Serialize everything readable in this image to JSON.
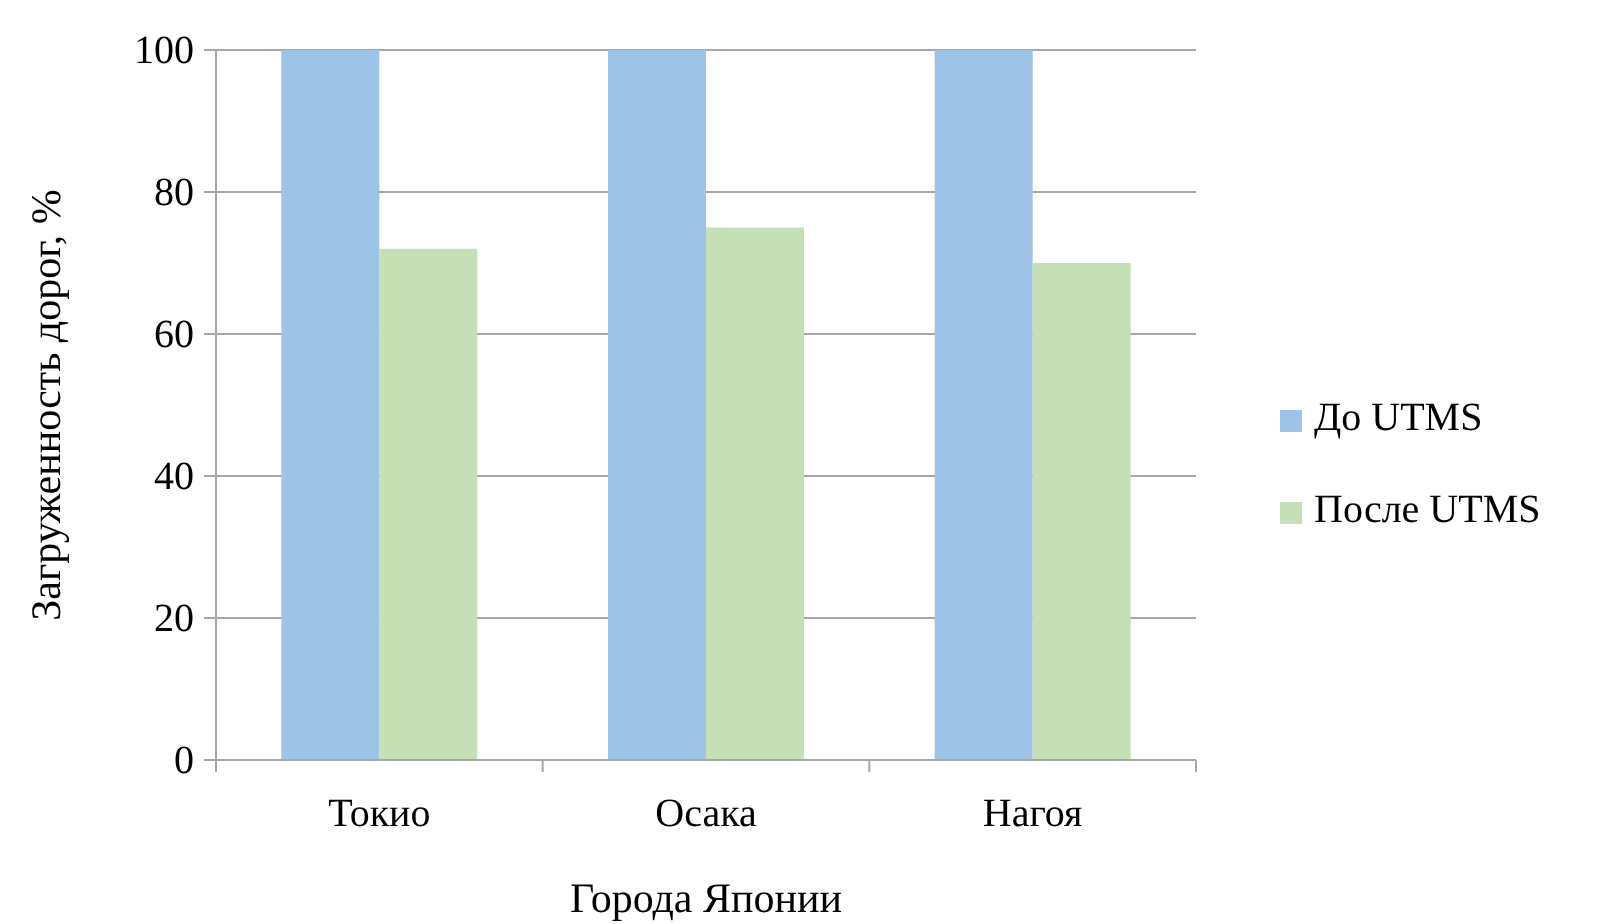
{
  "chart_data": {
    "type": "bar",
    "xlabel": "Города Японии",
    "ylabel": "Загруженность дорог, %",
    "categories": [
      "Токио",
      "Осака",
      "Нагоя"
    ],
    "series": [
      {
        "name": "До UTMS",
        "color": "#9dc3e6",
        "values": [
          100,
          100,
          100
        ]
      },
      {
        "name": "После UTMS",
        "color": "#c5e0b4",
        "values": [
          72,
          75,
          70
        ]
      }
    ],
    "ylim": [
      0,
      100
    ],
    "yticks": [
      0,
      20,
      40,
      60,
      80,
      100
    ],
    "grid": "y",
    "legend": "right"
  }
}
